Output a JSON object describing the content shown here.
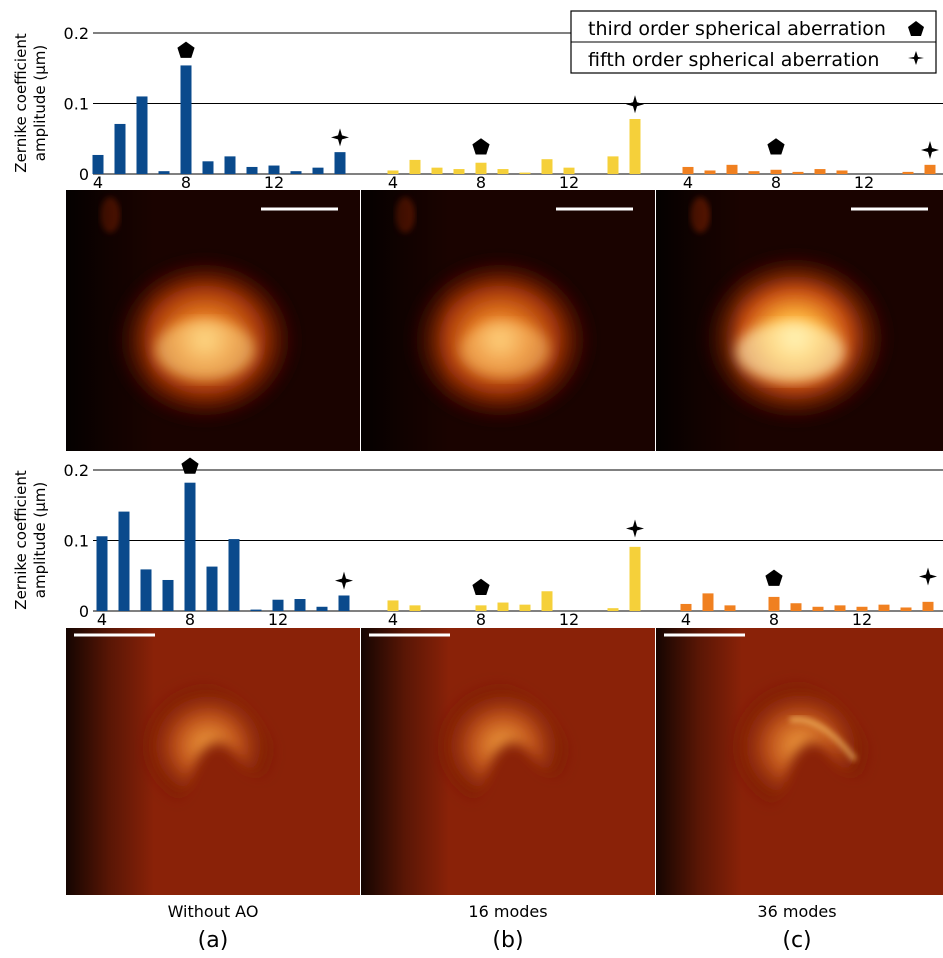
{
  "chart_data": [
    {
      "type": "bar",
      "ylabel_line1": "Zernike coefficient",
      "ylabel_line2": "amplitude (μm)",
      "ylim": [
        0,
        0.2
      ],
      "yticks": [
        "0",
        "0.1",
        "0.2"
      ],
      "xticks": [
        "4",
        "8",
        "12"
      ],
      "modes": [
        4,
        5,
        6,
        7,
        8,
        9,
        10,
        11,
        12,
        13,
        14,
        15,
        16
      ],
      "groups": [
        {
          "name": "Without AO",
          "color": "#0a4a8c",
          "values": [
            0.027,
            0.071,
            0.11,
            0.004,
            0.154,
            0.018,
            0.025,
            0.01,
            0.012,
            0.004,
            0.009,
            0.031,
            null
          ],
          "markers": {
            "pentagon": [
              8,
              0.175
            ],
            "star": [
              15,
              0.052
            ]
          }
        },
        {
          "name": "16 modes",
          "color": "#f5d03a",
          "values": [
            0.005,
            0.02,
            0.009,
            0.007,
            0.016,
            0.007,
            0.002,
            0.021,
            0.009,
            null,
            0.025,
            0.078,
            null
          ],
          "markers": {
            "pentagon": [
              8,
              0.038
            ],
            "star": [
              15,
              0.099
            ]
          }
        },
        {
          "name": "36 modes",
          "color": "#f08020",
          "values": [
            0.01,
            0.005,
            0.013,
            0.004,
            0.006,
            0.003,
            0.007,
            0.005,
            null,
            null,
            0.003,
            0.013,
            null
          ],
          "markers": {
            "pentagon": [
              8,
              0.038
            ],
            "star": [
              15,
              0.034
            ]
          }
        }
      ]
    },
    {
      "type": "bar",
      "ylabel_line1": "Zernike coefficient",
      "ylabel_line2": "amplitude (μm)",
      "ylim": [
        0,
        0.2
      ],
      "yticks": [
        "0",
        "0.1",
        "0.2"
      ],
      "xticks": [
        "4",
        "8",
        "12"
      ],
      "modes": [
        4,
        5,
        6,
        7,
        8,
        9,
        10,
        11,
        12,
        13,
        14,
        15,
        16
      ],
      "groups": [
        {
          "name": "Without AO",
          "color": "#0a4a8c",
          "values": [
            0.106,
            0.141,
            0.059,
            0.044,
            0.182,
            0.063,
            0.102,
            0.002,
            0.016,
            0.017,
            0.006,
            0.022,
            null
          ],
          "markers": {
            "pentagon": [
              8,
              0.205
            ],
            "star": [
              15,
              0.043
            ]
          }
        },
        {
          "name": "16 modes",
          "color": "#f5d03a",
          "values": [
            0.015,
            0.008,
            null,
            null,
            0.008,
            0.012,
            0.009,
            0.028,
            null,
            null,
            0.004,
            0.091,
            null
          ],
          "markers": {
            "pentagon": [
              8,
              0.033
            ],
            "star": [
              15,
              0.117
            ]
          }
        },
        {
          "name": "36 modes",
          "color": "#f08020",
          "values": [
            0.01,
            0.025,
            0.008,
            null,
            0.02,
            0.011,
            0.006,
            0.008,
            0.006,
            0.009,
            0.005,
            0.013,
            null
          ],
          "markers": {
            "pentagon": [
              8,
              0.046
            ],
            "star": [
              15,
              0.049
            ]
          }
        }
      ]
    }
  ],
  "legend": {
    "items": [
      {
        "label": "third order spherical aberration",
        "marker": "pentagon"
      },
      {
        "label": "fifth order spherical aberration",
        "marker": "star"
      }
    ]
  },
  "columns": [
    {
      "label": "Without AO",
      "panel": "(a)"
    },
    {
      "label": "16 modes",
      "panel": "(b)"
    },
    {
      "label": "36 modes",
      "panel": "(c)"
    }
  ]
}
